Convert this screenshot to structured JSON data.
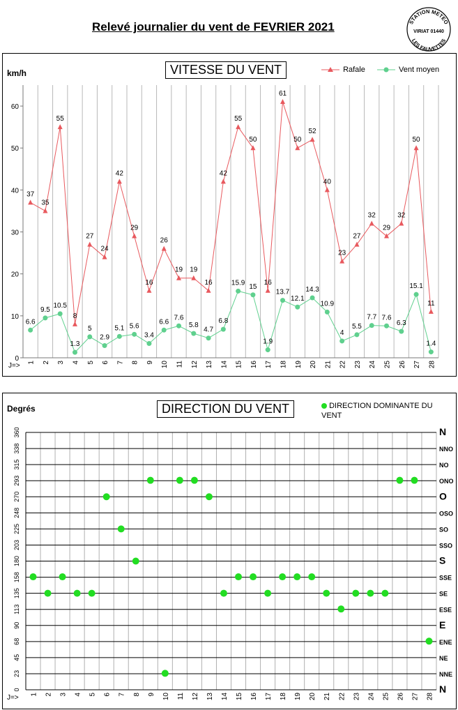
{
  "page_title": "Relevé journalier du vent de FEVRIER 2021",
  "stamp": {
    "line1": "STATION METEO",
    "line2": "VIRIAT 01440",
    "line3": "LES FAUVETTES"
  },
  "speed_chart": {
    "title": "VITESSE DU VENT",
    "ylabel": "km/h",
    "x_prefix": "J=>",
    "legend": {
      "gust": "Rafale",
      "mean": "Vent moyen"
    },
    "colors": {
      "gust": "#e8595e",
      "mean": "#5fd08e"
    }
  },
  "direction_chart": {
    "title": "DIRECTION DU VENT",
    "ylabel": "Degrés",
    "x_prefix": "J=>",
    "legend": "DIRECTION DOMINANTE DU VENT",
    "color": "#22dd22"
  },
  "chart_data": [
    {
      "type": "line",
      "title": "VITESSE DU VENT",
      "ylabel": "km/h",
      "x": [
        1,
        2,
        3,
        4,
        5,
        6,
        7,
        8,
        9,
        10,
        11,
        12,
        13,
        14,
        15,
        16,
        17,
        18,
        19,
        20,
        21,
        22,
        23,
        24,
        25,
        26,
        27,
        28
      ],
      "ylim": [
        0,
        65
      ],
      "yticks": [
        0,
        10,
        20,
        30,
        40,
        50,
        60
      ],
      "grid": "vertical",
      "legend_position": "top-right",
      "series": [
        {
          "name": "Rafale",
          "marker": "triangle",
          "values": [
            37,
            35,
            55,
            8,
            27,
            24,
            42,
            29,
            16,
            26,
            19,
            19,
            16,
            42,
            55,
            50,
            16,
            61,
            50,
            52,
            40,
            23,
            27,
            32,
            29,
            32,
            50,
            11
          ],
          "labels": [
            "37",
            "35",
            "55",
            "8",
            "27",
            "24",
            "42",
            "29",
            "16",
            "26",
            "19",
            "19",
            "16",
            "42",
            "55",
            "50",
            "16",
            "61",
            "50",
            "52",
            "40",
            "23",
            "27",
            "32",
            "29",
            "32",
            "50",
            "11"
          ]
        },
        {
          "name": "Vent moyen",
          "marker": "circle",
          "values": [
            6.6,
            9.5,
            10.5,
            1.3,
            5,
            2.9,
            5.1,
            5.6,
            3.4,
            6.6,
            7.6,
            5.8,
            4.7,
            6.8,
            15.9,
            15,
            1.9,
            13.7,
            12.1,
            14.3,
            10.9,
            4,
            5.5,
            7.7,
            7.6,
            6.3,
            15.1,
            1.4
          ],
          "labels": [
            "6.6",
            "9.5",
            "10.5",
            "1.3",
            "5",
            "2.9",
            "5.1",
            "5.6",
            "3.4",
            "6.6",
            "7.6",
            "5.8",
            "4.7",
            "6.8",
            "15.9",
            "15",
            "1.9",
            "13.7",
            "12.1",
            "14.3",
            "10.9",
            "4",
            "5.5",
            "7.7",
            "7.6",
            "6.3",
            "15.1",
            "1.4"
          ]
        }
      ]
    },
    {
      "type": "scatter",
      "title": "DIRECTION DU VENT",
      "ylabel": "Degrés",
      "x": [
        1,
        2,
        3,
        4,
        5,
        6,
        7,
        8,
        9,
        10,
        11,
        12,
        13,
        14,
        15,
        16,
        17,
        18,
        19,
        20,
        21,
        22,
        23,
        24,
        25,
        26,
        27,
        28
      ],
      "ylim": [
        0,
        360
      ],
      "yticks": [
        "0",
        "23",
        "45",
        "68",
        "90",
        "113",
        "135",
        "158",
        "180",
        "203",
        "225",
        "248",
        "270",
        "293",
        "315",
        "338",
        "360"
      ],
      "compass": [
        "N",
        "NNE",
        "NE",
        "ENE",
        "E",
        "ESE",
        "SE",
        "SSE",
        "S",
        "SSO",
        "SO",
        "OSO",
        "O",
        "ONO",
        "NO",
        "NNO",
        "N"
      ],
      "grid": "both",
      "legend_position": "top-right",
      "series": [
        {
          "name": "DIRECTION DOMINANTE DU VENT",
          "values": [
            158,
            135,
            158,
            135,
            135,
            270,
            225,
            180,
            293,
            23,
            293,
            293,
            270,
            135,
            158,
            158,
            135,
            158,
            158,
            158,
            135,
            113,
            135,
            135,
            135,
            293,
            293,
            68
          ]
        }
      ]
    }
  ]
}
